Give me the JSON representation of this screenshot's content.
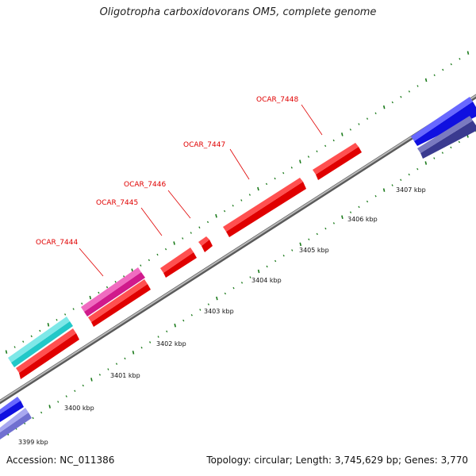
{
  "title": "Oligotropha carboxidovorans OM5, complete genome",
  "accession": "Accession: NC_011386",
  "summary": "Topology: circular; Length: 3,745,629 bp; Genes: 3,770",
  "colors": {
    "backbone": "#8c8c8c",
    "tick": "#1a7a1a",
    "gene_red": "#f00000",
    "gene_magenta": "#e0209a",
    "gene_cyan": "#22c8c8",
    "gene_blue": "#1010e0",
    "gene_purple": "#7070d0",
    "gene_navy": "#3a3a90",
    "label_red": "#e00000"
  },
  "scale_labels": [
    "3399 kbp",
    "3400 kbp",
    "3401 kbp",
    "3402 kbp",
    "3403 kbp",
    "3404 kbp",
    "3405 kbp",
    "3406 kbp",
    "3407 kbp"
  ],
  "gene_labels": [
    "OCAR_7444",
    "OCAR_7445",
    "OCAR_7446",
    "OCAR_7447",
    "OCAR_7448"
  ]
}
